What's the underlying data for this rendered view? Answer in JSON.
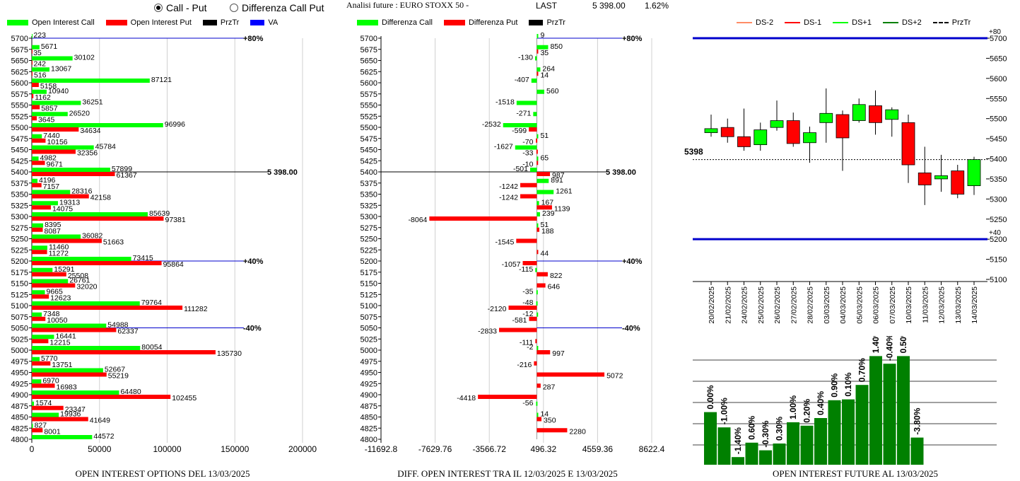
{
  "header": {
    "radio_call_put": "Call - Put",
    "radio_diff": "Differenza Call Put",
    "title": "Analisi future : EURO STOXX 50 -",
    "last_label": "LAST",
    "last_value": "5 398.00",
    "last_pct": "1.62%"
  },
  "legend1": {
    "call": "Open Interest Call",
    "put": "Open Interest Put",
    "przt": "PrzTr",
    "va": "VA"
  },
  "legend2": {
    "call": "Differenza Call",
    "put": "Differenza Put",
    "przt": "PrzTr"
  },
  "legend3": {
    "ds_2": "DS-2",
    "ds_1": "DS-1",
    "ds_p1": "DS+1",
    "ds_p2": "DS+2",
    "przt": "PrzTr"
  },
  "captions": {
    "c1": "OPEN INTEREST OPTIONS DEL 13/03/2025",
    "c2": "DIFF. OPEN INTEREST TRA IL 12/03/2025 E 13/03/2025",
    "c3": "OPEN INTEREST FUTURE AL 13/03/2025"
  },
  "colors": {
    "green": "#00ff00",
    "red": "#ff0000",
    "blue": "#0000cc",
    "dark_green": "#008000"
  },
  "chart_data": [
    {
      "type": "bar",
      "orientation": "horizontal",
      "strikes": [
        5700,
        5675,
        5650,
        5625,
        5600,
        5575,
        5550,
        5525,
        5500,
        5475,
        5450,
        5425,
        5400,
        5375,
        5350,
        5325,
        5300,
        5275,
        5250,
        5225,
        5200,
        5175,
        5150,
        5125,
        5100,
        5075,
        5050,
        5025,
        5000,
        4975,
        4950,
        4925,
        4900,
        4875,
        4850,
        4825,
        4800
      ],
      "series": [
        {
          "name": "Open Interest Call",
          "values": [
            223,
            5671,
            30102,
            13067,
            87121,
            10940,
            36251,
            26520,
            96996,
            7440,
            45784,
            4982,
            57899,
            4196,
            28316,
            19313,
            85639,
            8395,
            36082,
            11460,
            73415,
            15291,
            26761,
            9665,
            79764,
            7348,
            54988,
            16441,
            80054,
            5770,
            52667,
            6970,
            64480,
            1574,
            19936,
            827,
            44572
          ]
        },
        {
          "name": "Open Interest Put",
          "values": [
            null,
            35,
            242,
            516,
            5158,
            1162,
            5857,
            3645,
            34634,
            10156,
            32356,
            9671,
            61367,
            7157,
            42158,
            14075,
            97381,
            8087,
            51663,
            11272,
            95864,
            25508,
            32020,
            12623,
            111282,
            10050,
            62337,
            12215,
            135730,
            13751,
            55219,
            16983,
            102455,
            23347,
            41649,
            8001,
            null
          ]
        }
      ],
      "x_ticks": [
        "0",
        "50000",
        "100000",
        "150000",
        "200000"
      ],
      "xlim": [
        0,
        200000
      ],
      "reference_lines": [
        {
          "strike": 5700,
          "label": "+80%"
        },
        {
          "strike": 5400,
          "label": "5 398.00"
        },
        {
          "strike": 5200,
          "label": "+40%"
        },
        {
          "strike": 5050,
          "label": "-40%"
        }
      ]
    },
    {
      "type": "bar",
      "orientation": "horizontal",
      "strikes": [
        5700,
        5675,
        5650,
        5625,
        5600,
        5575,
        5550,
        5525,
        5500,
        5475,
        5450,
        5425,
        5400,
        5375,
        5350,
        5325,
        5300,
        5275,
        5250,
        5225,
        5200,
        5175,
        5150,
        5125,
        5100,
        5075,
        5050,
        5025,
        5000,
        4975,
        4950,
        4925,
        4900,
        4875,
        4850,
        4825,
        4800
      ],
      "series": [
        {
          "name": "Differenza Call",
          "values": [
            9,
            850,
            -130,
            264,
            -407,
            560,
            -1518,
            -271,
            -2532,
            51,
            -1627,
            65,
            -501,
            891,
            1261,
            167,
            239,
            51,
            null,
            null,
            null,
            -115,
            null,
            -35,
            -48,
            -12,
            null,
            null,
            -2,
            null,
            null,
            null,
            null,
            -56,
            14,
            null,
            null
          ]
        },
        {
          "name": "Differenza Put",
          "values": [
            null,
            35,
            null,
            14,
            null,
            null,
            null,
            null,
            -599,
            -70,
            -33,
            -10,
            987,
            -1242,
            -1242,
            1139,
            -8064,
            188,
            -1545,
            44,
            -1057,
            822,
            646,
            null,
            -2120,
            -581,
            -2833,
            -111,
            997,
            -216,
            5072,
            287,
            -4418,
            null,
            350,
            2280,
            null
          ]
        }
      ],
      "x_ticks": [
        "-11692.8",
        "-7629.76",
        "-3566.72",
        "496.32",
        "4559.36",
        "8622.4"
      ],
      "xlim": [
        -11692.8,
        8622.4
      ],
      "reference_lines": [
        {
          "strike": 5700,
          "label": "+80%"
        },
        {
          "strike": 5400,
          "label": "5 398.00"
        },
        {
          "strike": 5200,
          "label": "+40%"
        },
        {
          "strike": 5050,
          "label": "-40%"
        }
      ]
    },
    {
      "type": "candlestick",
      "dates": [
        "20/02/2025",
        "21/02/2025",
        "24/02/2025",
        "25/02/2025",
        "26/02/2025",
        "27/02/2025",
        "28/02/2025",
        "03/03/2025",
        "04/03/2025",
        "05/03/2025",
        "06/03/2025",
        "07/03/2025",
        "10/03/2025",
        "11/03/2025",
        "12/03/2025",
        "13/03/2025",
        "14/03/2025"
      ],
      "ohlc": [
        {
          "o": 5465,
          "h": 5510,
          "l": 5455,
          "c": 5475
        },
        {
          "o": 5478,
          "h": 5500,
          "l": 5440,
          "c": 5455
        },
        {
          "o": 5455,
          "h": 5525,
          "l": 5420,
          "c": 5430
        },
        {
          "o": 5435,
          "h": 5490,
          "l": 5420,
          "c": 5472
        },
        {
          "o": 5478,
          "h": 5545,
          "l": 5470,
          "c": 5495
        },
        {
          "o": 5495,
          "h": 5515,
          "l": 5430,
          "c": 5438
        },
        {
          "o": 5440,
          "h": 5480,
          "l": 5390,
          "c": 5465
        },
        {
          "o": 5490,
          "h": 5575,
          "l": 5440,
          "c": 5513
        },
        {
          "o": 5510,
          "h": 5520,
          "l": 5370,
          "c": 5452
        },
        {
          "o": 5495,
          "h": 5550,
          "l": 5490,
          "c": 5535
        },
        {
          "o": 5532,
          "h": 5570,
          "l": 5460,
          "c": 5490
        },
        {
          "o": 5498,
          "h": 5528,
          "l": 5455,
          "c": 5522
        },
        {
          "o": 5490,
          "h": 5510,
          "l": 5340,
          "c": 5385
        },
        {
          "o": 5365,
          "h": 5430,
          "l": 5285,
          "c": 5335
        },
        {
          "o": 5350,
          "h": 5410,
          "l": 5318,
          "c": 5358
        },
        {
          "o": 5370,
          "h": 5385,
          "l": 5302,
          "c": 5312
        },
        {
          "o": 5333,
          "h": 5405,
          "l": 5310,
          "c": 5398
        }
      ],
      "y_ticks": [
        "5700",
        "5650",
        "5600",
        "5550",
        "5500",
        "5450",
        "5400",
        "5350",
        "5300",
        "5250",
        "5200",
        "5150",
        "5100"
      ],
      "ylim": [
        5100,
        5700
      ],
      "levels": [
        {
          "value": 5700,
          "label": "+80"
        },
        {
          "value": 5200,
          "label": "+40"
        }
      ],
      "last_label": "5398",
      "last_value": 5398
    },
    {
      "type": "bar",
      "values": [
        0.62,
        0.44,
        0.09,
        0.26,
        0.17,
        0.25,
        0.5,
        0.46,
        0.55,
        0.76,
        0.77,
        0.94,
        1.28,
        1.19,
        1.28,
        0.32
      ],
      "labels": [
        "0.00%",
        "-1.00%",
        "-1.40%",
        "0.60%",
        "-0.30%",
        "0.30%",
        "1.00%",
        "0.20%",
        "0.40%",
        "0.90%",
        "0.10%",
        "0.70%",
        "1.40%",
        "-0.40%",
        "0.50%",
        "-3.80%"
      ]
    }
  ]
}
